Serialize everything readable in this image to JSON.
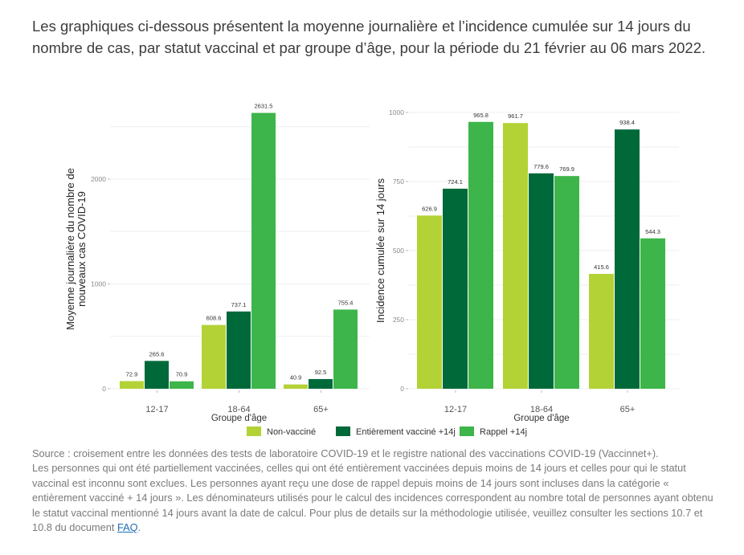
{
  "intro": "Les graphiques ci-dessous présentent la moyenne journalière et l’incidence cumulée sur 14 jours du nombre de cas, par statut vaccinal et par groupe d’âge, pour la période du 21 février au 06 mars 2022.",
  "colors": {
    "non_vaccine": "#b3d236",
    "entierement_vaccine": "#00693a",
    "rappel": "#3db54a"
  },
  "chart_data": [
    {
      "type": "bar",
      "title": "",
      "xlabel": "Groupe d'âge",
      "ylabel": [
        "Moyenne journalière du nombre de",
        "nouveaux cas COVID-19"
      ],
      "categories": [
        "12-17",
        "18-64",
        "65+"
      ],
      "yticks": [
        0,
        1000,
        2000
      ],
      "ylim": [
        0,
        2650
      ],
      "grid": true,
      "series": [
        {
          "name": "Non-vacciné",
          "values": [
            72.9,
            608.6,
            40.9
          ]
        },
        {
          "name": "Entièrement vacciné +14j",
          "values": [
            265.6,
            737.1,
            92.5
          ]
        },
        {
          "name": "Rappel +14j",
          "values": [
            70.9,
            2631.5,
            755.4
          ]
        }
      ],
      "value_labels": [
        [
          "72.9",
          "608.6",
          "40.9"
        ],
        [
          "265.6",
          "737.1",
          "92.5"
        ],
        [
          "70.9",
          "2631.5",
          "755.4"
        ]
      ]
    },
    {
      "type": "bar",
      "title": "",
      "xlabel": "Groupe d'âge",
      "ylabel": [
        "Incidence cumulée sur 14 jours"
      ],
      "categories": [
        "12-17",
        "18-64",
        "65+"
      ],
      "yticks": [
        0,
        250,
        500,
        750,
        1000
      ],
      "ylim": [
        0,
        1000
      ],
      "grid": true,
      "series": [
        {
          "name": "Non-vacciné",
          "values": [
            626.9,
            961.7,
            415.6
          ]
        },
        {
          "name": "Entièrement vacciné +14j",
          "values": [
            724.1,
            779.6,
            938.4
          ]
        },
        {
          "name": "Rappel +14j",
          "values": [
            965.8,
            769.9,
            544.3
          ]
        }
      ],
      "value_labels": [
        [
          "626.9",
          "961.7",
          "415.6"
        ],
        [
          "724.1",
          "779.6",
          "938.4"
        ],
        [
          "965.8",
          "769.9",
          "544.3"
        ]
      ]
    }
  ],
  "legend": {
    "placement": "bottom-center",
    "items": [
      "Non-vacciné",
      "Entièrement vacciné +14j",
      "Rappel +14j"
    ]
  },
  "notes": {
    "source": "Source : croisement entre les données des tests de laboratoire COVID-19 et le registre national des vaccinations COVID-19 (Vaccinnet+).",
    "details": "Les personnes qui ont été partiellement vaccinées, celles qui ont été entièrement vaccinées depuis moins de 14 jours et celles pour qui le statut vaccinal est inconnu sont exclues. Les personnes ayant reçu une dose de rappel depuis moins de 14 jours sont incluses dans la catégorie « entièrement vacciné + 14 jours ». Les dénominateurs utilisés pour le calcul des incidences correspondent au nombre total de personnes ayant obtenu le statut vaccinal mentionné 14 jours avant la date de calcul. Pour plus de details sur la méthodologie utilisée, veuillez consulter les sections 10.7 et 10.8 du document ",
    "link_label": "FAQ",
    "end": "."
  }
}
